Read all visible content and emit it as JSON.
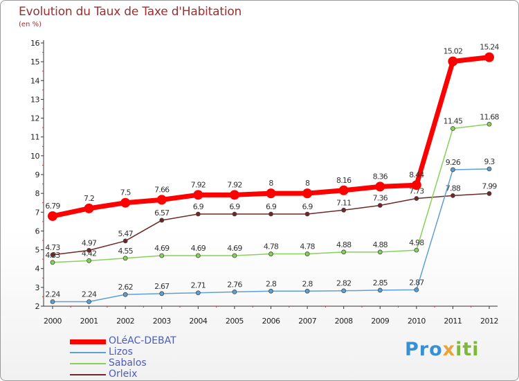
{
  "title": "Evolution du Taux de Taxe d'Habitation",
  "unit_label": "(en %)",
  "logo": {
    "part1": "Pro",
    "part2": "x",
    "part3": "iti"
  },
  "chart_data": {
    "type": "line",
    "title": "Evolution du Taux de Taxe d'Habitation",
    "ylabel": "(en %)",
    "xlabel": "",
    "x": [
      2000,
      2001,
      2002,
      2003,
      2004,
      2005,
      2006,
      2007,
      2008,
      2009,
      2010,
      2011,
      2012
    ],
    "ylim": [
      2,
      16
    ],
    "yticks": [
      2,
      3,
      4,
      5,
      6,
      7,
      8,
      9,
      10,
      11,
      12,
      13,
      14,
      15,
      16
    ],
    "grid": false,
    "legend_position": "bottom-left",
    "series": [
      {
        "name": "Orleix",
        "color": "#6e2626",
        "values": [
          4.73,
          4.97,
          5.47,
          6.57,
          6.9,
          6.9,
          6.9,
          6.9,
          7.11,
          7.36,
          7.73,
          7.88,
          7.99
        ],
        "labels": [
          "4.73",
          "4.97",
          "5.47",
          "6.57",
          "6.9",
          "6.9",
          "6.9",
          "6.9",
          "7.11",
          "7.36",
          "7.73",
          "7.88",
          "7.99"
        ]
      },
      {
        "name": "Sabalos",
        "color": "#88d158",
        "values": [
          4.33,
          4.42,
          4.55,
          4.69,
          4.69,
          4.69,
          4.78,
          4.78,
          4.88,
          4.88,
          4.98,
          11.45,
          11.68
        ],
        "labels": [
          "4.33",
          "4.42",
          "4.55",
          "4.69",
          "4.69",
          "4.69",
          "4.78",
          "4.78",
          "4.88",
          "4.88",
          "4.98",
          "11.45",
          "11.68"
        ]
      },
      {
        "name": "Lizos",
        "color": "#5f9fd0",
        "values": [
          2.24,
          2.24,
          2.62,
          2.67,
          2.71,
          2.76,
          2.8,
          2.8,
          2.82,
          2.85,
          2.87,
          9.26,
          9.3
        ],
        "labels": [
          "2.24",
          "2.24",
          "2.62",
          "2.67",
          "2.71",
          "2.76",
          "2.8",
          "2.8",
          "2.82",
          "2.85",
          "2.87",
          "9.26",
          "9.3"
        ]
      },
      {
        "name": "OLéAC-DEBAT",
        "color": "#ff0000",
        "values": [
          6.79,
          7.2,
          7.5,
          7.66,
          7.92,
          7.92,
          8,
          8,
          8.16,
          8.36,
          8.44,
          15.02,
          15.24
        ],
        "labels": [
          "6.79",
          "7.2",
          "7.5",
          "7.66",
          "7.92",
          "7.92",
          "8",
          "8",
          "8.16",
          "8.36",
          "8.44",
          "15.02",
          "15.24"
        ]
      }
    ],
    "legend": [
      "OLéAC-DEBAT",
      "Lizos",
      "Sabalos",
      "Orleix"
    ]
  }
}
